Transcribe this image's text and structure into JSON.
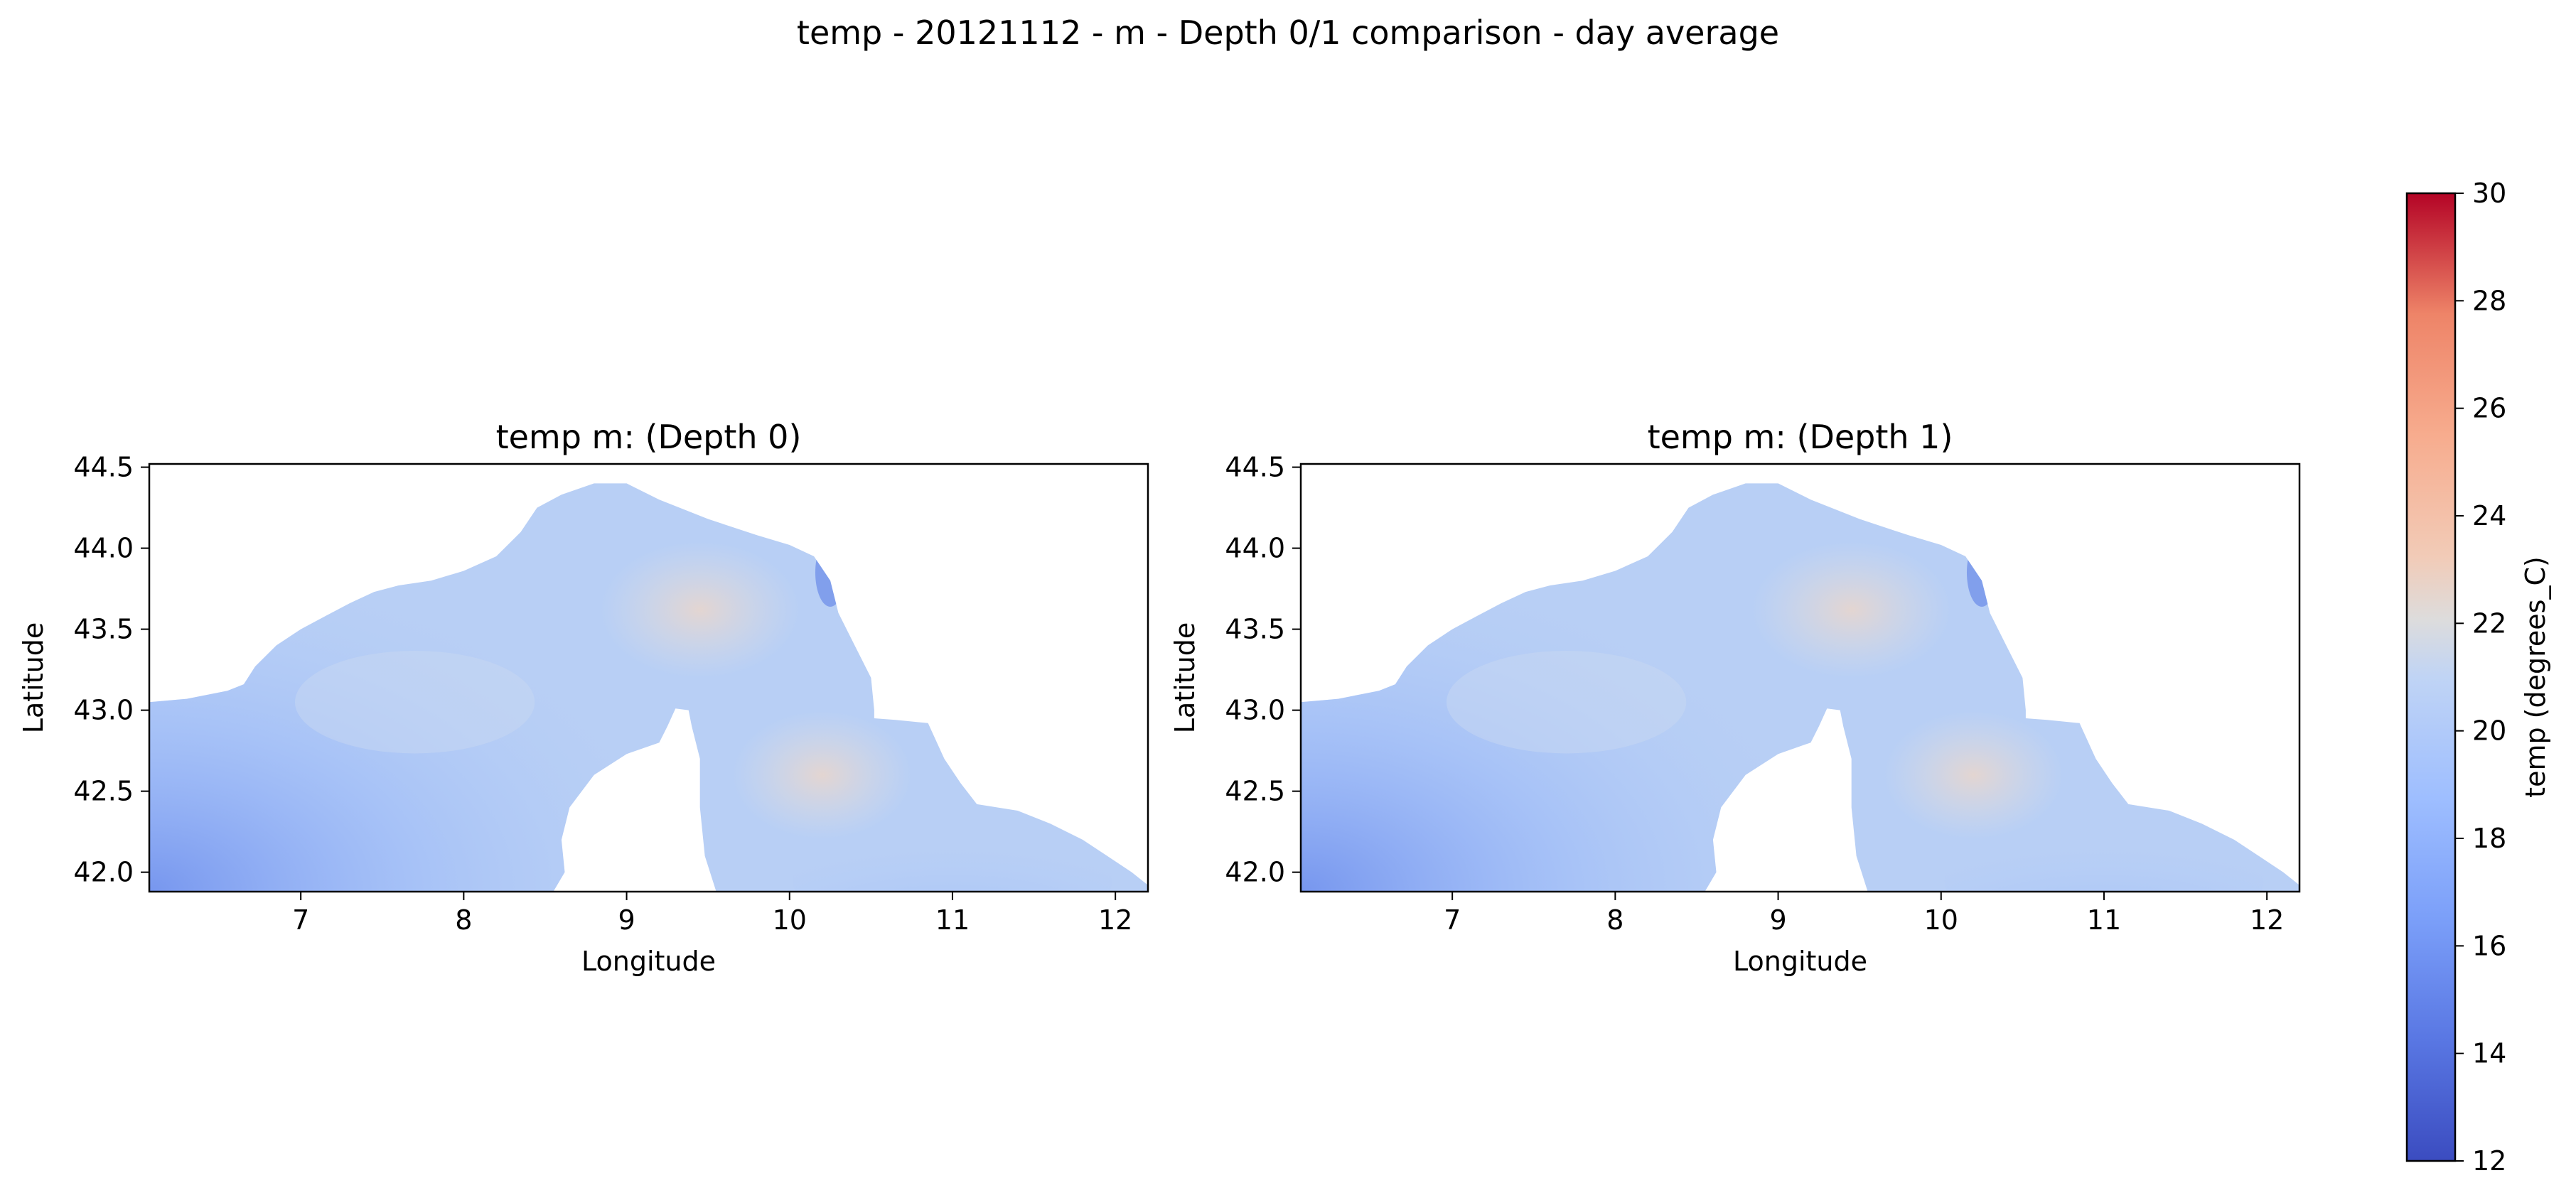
{
  "figure": {
    "suptitle": "temp - 20121112 - m - Depth 0/1 comparison - day average"
  },
  "colors": {
    "cmap_low": "#3b4cc0",
    "cmap_mid": "#dddddd",
    "cmap_high": "#b40426",
    "land": "#ffffff",
    "axes": "#000000"
  },
  "chart_data": [
    {
      "type": "heatmap",
      "title": "temp m: (Depth 0)",
      "xlabel": "Longitude",
      "ylabel": "Latitude",
      "xlim": [
        6.07,
        12.2
      ],
      "ylim": [
        41.88,
        44.52
      ],
      "xticks": [
        7,
        8,
        9,
        10,
        11,
        12
      ],
      "yticks": [
        42.0,
        42.5,
        43.0,
        43.5,
        44.0,
        44.5
      ],
      "grid": false,
      "value_field": "temp (degrees_C)",
      "approx_range": [
        15,
        21
      ]
    },
    {
      "type": "heatmap",
      "title": "temp m: (Depth 1)",
      "xlabel": "Longitude",
      "ylabel": "Latitude",
      "xlim": [
        6.07,
        12.2
      ],
      "ylim": [
        41.88,
        44.52
      ],
      "xticks": [
        7,
        8,
        9,
        10,
        11,
        12
      ],
      "yticks": [
        42.0,
        42.5,
        43.0,
        43.5,
        44.0,
        44.5
      ],
      "grid": false,
      "value_field": "temp (degrees_C)",
      "approx_range": [
        15,
        21
      ]
    }
  ],
  "colorbar": {
    "label": "temp (degrees_C)",
    "min": 12,
    "max": 30,
    "ticks": [
      12,
      14,
      16,
      18,
      20,
      22,
      24,
      26,
      28,
      30
    ]
  }
}
